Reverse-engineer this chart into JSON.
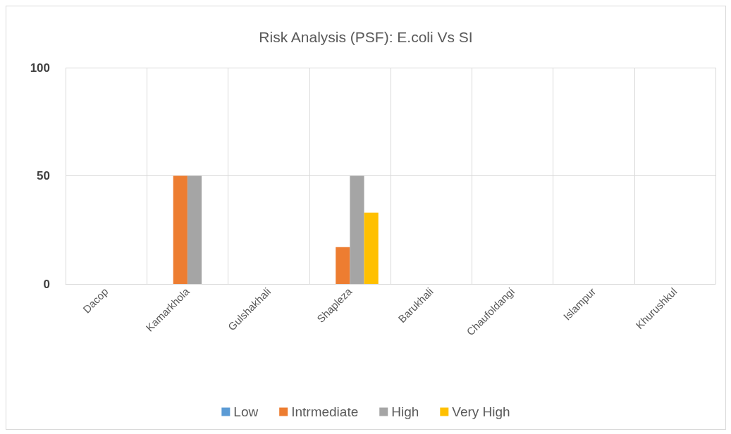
{
  "chart_data": {
    "type": "bar",
    "title": "Risk Analysis (PSF): E.coli Vs SI",
    "categories": [
      "Dacop",
      "Kamarkhola",
      "Gulshakhali",
      "Shapleza",
      "Barukhali",
      "Chaufoldangi",
      "Islampur",
      "Khurushkul"
    ],
    "series": [
      {
        "name": "Low",
        "color": "#5b9bd5",
        "values": [
          0,
          0,
          0,
          0,
          0,
          0,
          0,
          0
        ]
      },
      {
        "name": "Intrmediate",
        "color": "#ed7d31",
        "values": [
          0,
          50,
          0,
          17,
          0,
          0,
          0,
          0
        ]
      },
      {
        "name": "High",
        "color": "#a5a5a5",
        "values": [
          0,
          50,
          0,
          50,
          0,
          0,
          0,
          0
        ]
      },
      {
        "name": "Very High",
        "color": "#ffc000",
        "values": [
          0,
          0,
          0,
          33,
          0,
          0,
          0,
          0
        ]
      }
    ],
    "ylim": [
      0,
      100
    ],
    "yticks": [
      0,
      50,
      100
    ],
    "grid": true,
    "legend": "bottom"
  }
}
